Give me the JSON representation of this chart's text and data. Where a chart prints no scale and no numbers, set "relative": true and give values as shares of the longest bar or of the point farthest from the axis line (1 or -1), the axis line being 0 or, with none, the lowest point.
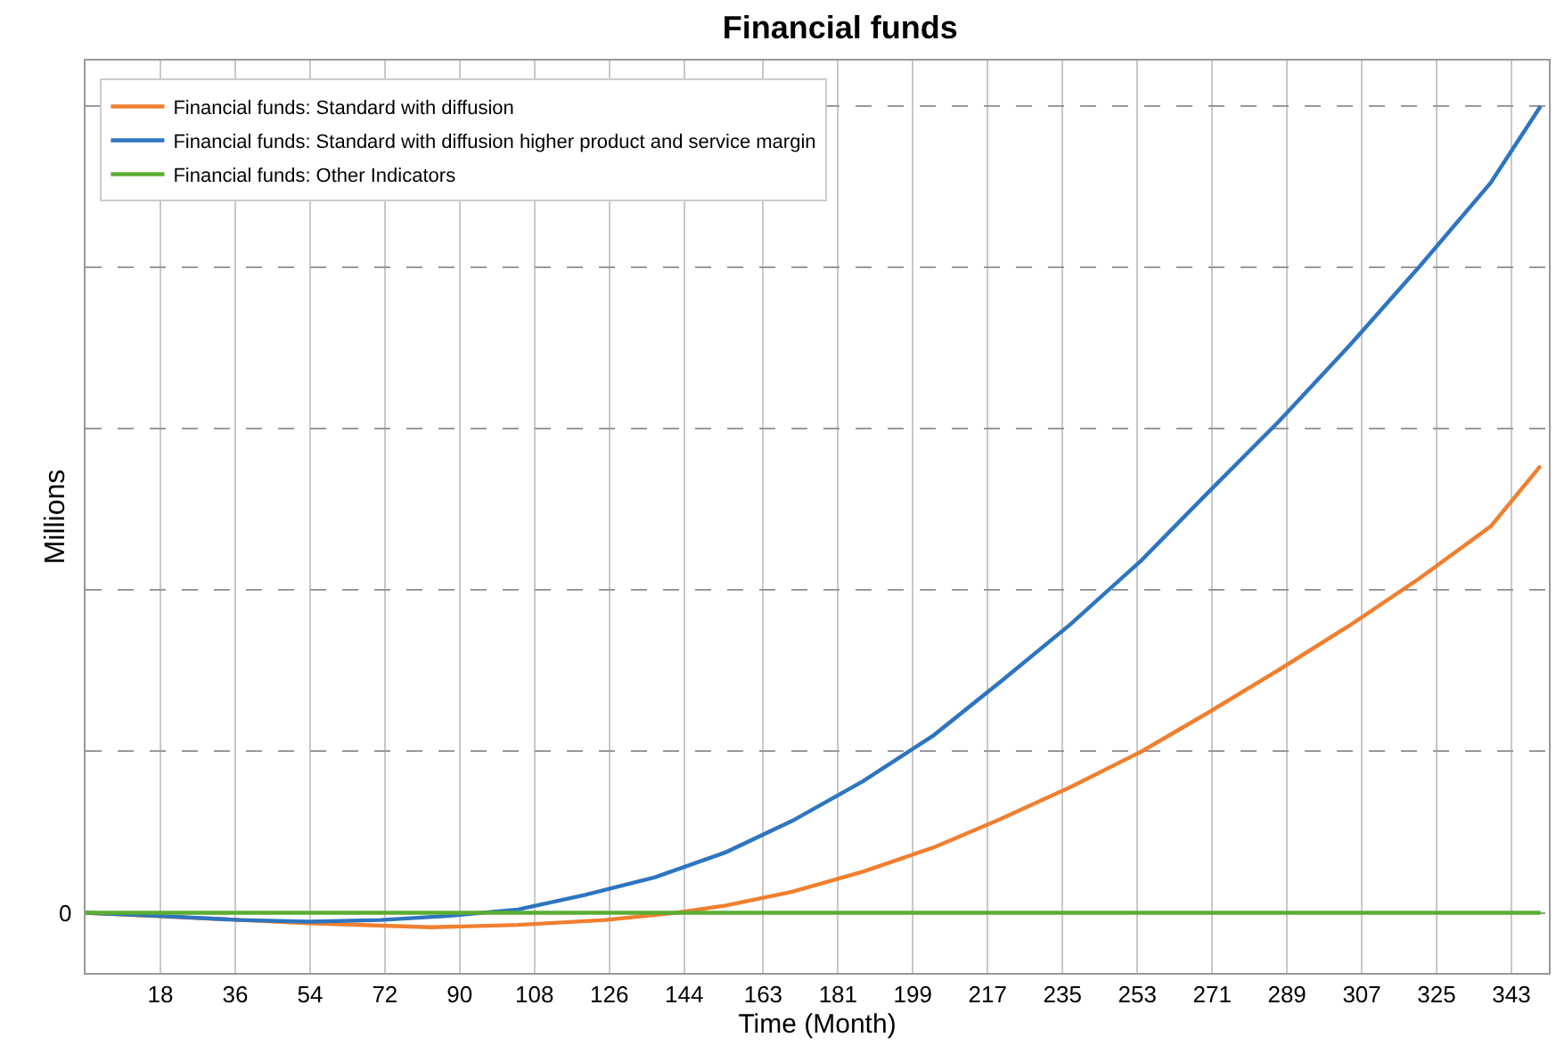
{
  "chart_data": {
    "type": "line",
    "title": "Financial funds",
    "xlabel": "Time (Month)",
    "ylabel": "Millions",
    "relative": true,
    "grid": true,
    "legend": "top left",
    "line_style": "solid",
    "marker": "none",
    "xlim": [
      0,
      352
    ],
    "xticks": [
      18,
      36,
      54,
      72,
      90,
      108,
      126,
      144,
      163,
      181,
      199,
      217,
      235,
      253,
      271,
      289,
      307,
      325,
      343
    ],
    "annotations": [
      "0"
    ],
    "series": [
      {
        "name": "Financial funds: Standard with diffusion",
        "color": "#f07f2f",
        "x": [
          0,
          29,
          54,
          83,
          104,
          125,
          142,
          154,
          170,
          187,
          204,
          220,
          237,
          254,
          270,
          287,
          304,
          321,
          338,
          350
        ],
        "values": [
          0,
          -0.007,
          -0.013,
          -0.018,
          -0.015,
          -0.009,
          0,
          0.009,
          0.026,
          0.051,
          0.081,
          0.116,
          0.156,
          0.2,
          0.248,
          0.301,
          0.356,
          0.415,
          0.479,
          0.554
        ]
      },
      {
        "name": "Financial funds: Standard with diffusion higher product and service margin",
        "color": "#2e75c0",
        "x": [
          0,
          18,
          37,
          54,
          71,
          87,
          104,
          120,
          137,
          154,
          170,
          187,
          204,
          220,
          237,
          254,
          270,
          287,
          304,
          321,
          338,
          350
        ],
        "values": [
          0,
          -0.004,
          -0.009,
          -0.011,
          -0.009,
          -0.004,
          0.004,
          0.022,
          0.044,
          0.075,
          0.114,
          0.163,
          0.22,
          0.286,
          0.358,
          0.437,
          0.521,
          0.609,
          0.703,
          0.802,
          0.905,
          1
        ]
      },
      {
        "name": "Financial funds: Other Indicators",
        "color": "#5aad32",
        "x": [
          0,
          350
        ],
        "values": [
          0,
          0
        ]
      }
    ]
  }
}
